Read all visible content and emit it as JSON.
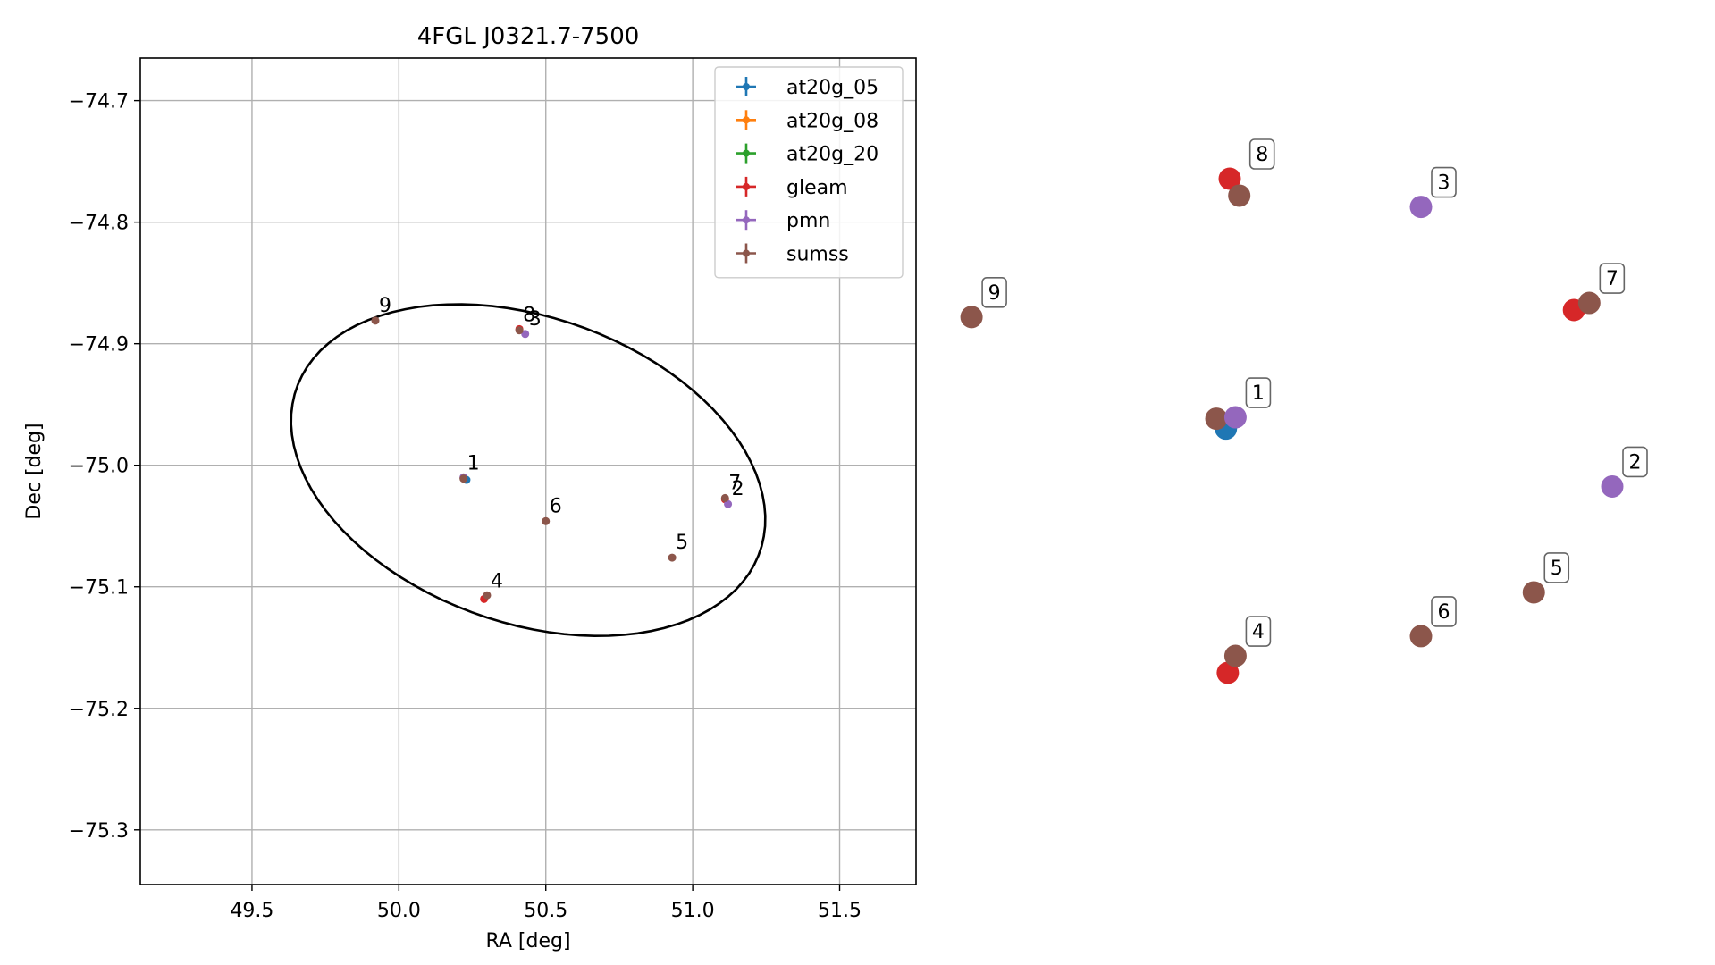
{
  "chart_data": [
    {
      "type": "scatter",
      "title": "4FGL J0321.7-7500",
      "xlabel": "RA [deg]",
      "ylabel": "Dec [deg]",
      "xlim": [
        49.12,
        51.76
      ],
      "ylim": [
        -75.345,
        -74.665
      ],
      "xticks": [
        49.5,
        50.0,
        50.5,
        51.0,
        51.5
      ],
      "xtick_labels": [
        "49.5",
        "50.0",
        "50.5",
        "51.0",
        "51.5"
      ],
      "yticks": [
        -74.7,
        -74.8,
        -74.9,
        -75.0,
        -75.1,
        -75.2,
        -75.3
      ],
      "ytick_labels": [
        "−74.7",
        "−74.8",
        "−74.9",
        "−75.0",
        "−75.1",
        "−75.2",
        "−75.3"
      ],
      "grid": true,
      "legend_position": "top-right",
      "ellipse": {
        "center": [
          50.44,
          -75.004
        ],
        "ra_semi_axis": 0.858,
        "dec_semi_axis": 0.128,
        "angle_deg": -24
      },
      "series": [
        {
          "name": "at20g_05",
          "color": "#1f77b4",
          "points": [
            {
              "ra": 50.23,
              "dec": -75.012
            }
          ]
        },
        {
          "name": "at20g_08",
          "color": "#ff7f0e",
          "points": []
        },
        {
          "name": "at20g_20",
          "color": "#2ca02c",
          "points": []
        },
        {
          "name": "gleam",
          "color": "#d62728",
          "points": [
            {
              "ra": 50.41,
              "dec": -74.888
            },
            {
              "ra": 51.11,
              "dec": -75.028
            },
            {
              "ra": 50.29,
              "dec": -75.11
            }
          ]
        },
        {
          "name": "pmn",
          "color": "#9467bd",
          "points": [
            {
              "ra": 50.22,
              "dec": -75.01
            },
            {
              "ra": 50.43,
              "dec": -74.892
            },
            {
              "ra": 51.12,
              "dec": -75.032
            }
          ]
        },
        {
          "name": "sumss",
          "color": "#8c564b",
          "points": [
            {
              "ra": 50.22,
              "dec": -75.011
            },
            {
              "ra": 50.3,
              "dec": -75.107
            },
            {
              "ra": 50.5,
              "dec": -75.046
            },
            {
              "ra": 50.93,
              "dec": -75.076
            },
            {
              "ra": 51.11,
              "dec": -75.027
            },
            {
              "ra": 50.41,
              "dec": -74.889
            },
            {
              "ra": 49.92,
              "dec": -74.881
            }
          ]
        }
      ],
      "labels": [
        {
          "text": "1",
          "ra": 50.22,
          "dec": -75.011
        },
        {
          "text": "2",
          "ra": 51.12,
          "dec": -75.032
        },
        {
          "text": "3",
          "ra": 50.43,
          "dec": -74.892
        },
        {
          "text": "4",
          "ra": 50.3,
          "dec": -75.108
        },
        {
          "text": "5",
          "ra": 50.93,
          "dec": -75.076
        },
        {
          "text": "6",
          "ra": 50.5,
          "dec": -75.046
        },
        {
          "text": "7",
          "ra": 51.11,
          "dec": -75.027
        },
        {
          "text": "8",
          "ra": 50.41,
          "dec": -74.889
        },
        {
          "text": "9",
          "ra": 49.92,
          "dec": -74.881
        }
      ]
    },
    {
      "type": "scatter",
      "axes": "off",
      "points": [
        {
          "label": "8",
          "markers": [
            {
              "series": "gleam",
              "u": 0.0,
              "v": 0.0
            },
            {
              "series": "sumss",
              "u": 0.05,
              "v": 0.12
            }
          ]
        },
        {
          "label": "3",
          "markers": [
            {
              "series": "pmn",
              "u": 1.0,
              "v": 0.2
            }
          ]
        },
        {
          "label": "9",
          "markers": [
            {
              "series": "sumss",
              "u": -1.35,
              "v": 0.98
            }
          ]
        },
        {
          "label": "7",
          "markers": [
            {
              "series": "gleam",
              "u": 1.8,
              "v": 0.93
            },
            {
              "series": "sumss",
              "u": 1.88,
              "v": 0.88
            }
          ]
        },
        {
          "label": "1",
          "markers": [
            {
              "series": "at20g_05",
              "u": -0.02,
              "v": 1.77
            },
            {
              "series": "sumss",
              "u": -0.07,
              "v": 1.7
            },
            {
              "series": "pmn",
              "u": 0.03,
              "v": 1.69
            }
          ]
        },
        {
          "label": "2",
          "markers": [
            {
              "series": "pmn",
              "u": 2.0,
              "v": 2.18
            }
          ]
        },
        {
          "label": "5",
          "markers": [
            {
              "series": "sumss",
              "u": 1.59,
              "v": 2.93
            }
          ]
        },
        {
          "label": "6",
          "markers": [
            {
              "series": "sumss",
              "u": 1.0,
              "v": 3.24
            }
          ]
        },
        {
          "label": "4",
          "markers": [
            {
              "series": "gleam",
              "u": -0.01,
              "v": 3.5
            },
            {
              "series": "sumss",
              "u": 0.03,
              "v": 3.38
            }
          ]
        }
      ]
    }
  ]
}
